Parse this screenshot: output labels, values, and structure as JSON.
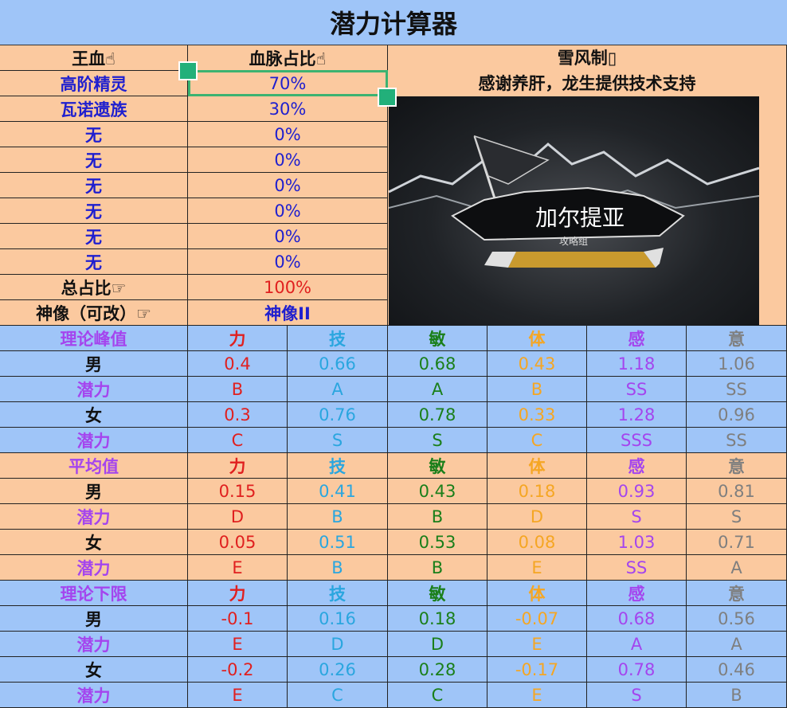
{
  "title": "潜力计算器",
  "bloodline": {
    "header_left": "王血☝",
    "header_right": "血脉占比☝",
    "rows": [
      {
        "name": "高阶精灵",
        "pct": "70%"
      },
      {
        "name": "瓦诺遗族",
        "pct": "30%"
      },
      {
        "name": "无",
        "pct": "0%"
      },
      {
        "name": "无",
        "pct": "0%"
      },
      {
        "name": "无",
        "pct": "0%"
      },
      {
        "name": "无",
        "pct": "0%"
      },
      {
        "name": "无",
        "pct": "0%"
      },
      {
        "name": "无",
        "pct": "0%"
      }
    ],
    "total_label": "总占比☞",
    "total_value": "100%",
    "statue_label": "神像（可改）☞",
    "statue_value": "神像II"
  },
  "credits": {
    "line1": "雪风制▯",
    "line2": "感谢养肝，龙生提供技术支持"
  },
  "logo": {
    "name": "加尔提亚",
    "sub": "攻略组"
  },
  "stat_headers": [
    "力",
    "技",
    "敏",
    "体",
    "感",
    "意"
  ],
  "stat_colors": [
    "#e0201f",
    "#2aa6df",
    "#1a7f1a",
    "#f5a623",
    "#a445ee",
    "#7f7f7f"
  ],
  "sections": [
    {
      "label": "理论峰值",
      "bg": "blue",
      "rows": [
        {
          "label": "男",
          "values": [
            "0.4",
            "0.66",
            "0.68",
            "0.43",
            "1.18",
            "1.06"
          ]
        },
        {
          "label": "潜力",
          "values": [
            "B",
            "A",
            "A",
            "B",
            "SS",
            "SS"
          ]
        },
        {
          "label": "女",
          "values": [
            "0.3",
            "0.76",
            "0.78",
            "0.33",
            "1.28",
            "0.96"
          ]
        },
        {
          "label": "潜力",
          "values": [
            "C",
            "S",
            "S",
            "C",
            "SSS",
            "SS"
          ]
        }
      ]
    },
    {
      "label": "平均值",
      "bg": "peach",
      "rows": [
        {
          "label": "男",
          "values": [
            "0.15",
            "0.41",
            "0.43",
            "0.18",
            "0.93",
            "0.81"
          ]
        },
        {
          "label": "潜力",
          "values": [
            "D",
            "B",
            "B",
            "D",
            "S",
            "S"
          ]
        },
        {
          "label": "女",
          "values": [
            "0.05",
            "0.51",
            "0.53",
            "0.08",
            "1.03",
            "0.71"
          ]
        },
        {
          "label": "潜力",
          "values": [
            "E",
            "B",
            "B",
            "E",
            "SS",
            "A"
          ]
        }
      ]
    },
    {
      "label": "理论下限",
      "bg": "blue",
      "rows": [
        {
          "label": "男",
          "values": [
            "-0.1",
            "0.16",
            "0.18",
            "-0.07",
            "0.68",
            "0.56"
          ]
        },
        {
          "label": "潜力",
          "values": [
            "E",
            "D",
            "D",
            "E",
            "A",
            "A"
          ]
        },
        {
          "label": "女",
          "values": [
            "-0.2",
            "0.26",
            "0.28",
            "-0.17",
            "0.78",
            "0.46"
          ]
        },
        {
          "label": "潜力",
          "values": [
            "E",
            "C",
            "C",
            "E",
            "S",
            "B"
          ]
        }
      ]
    }
  ]
}
